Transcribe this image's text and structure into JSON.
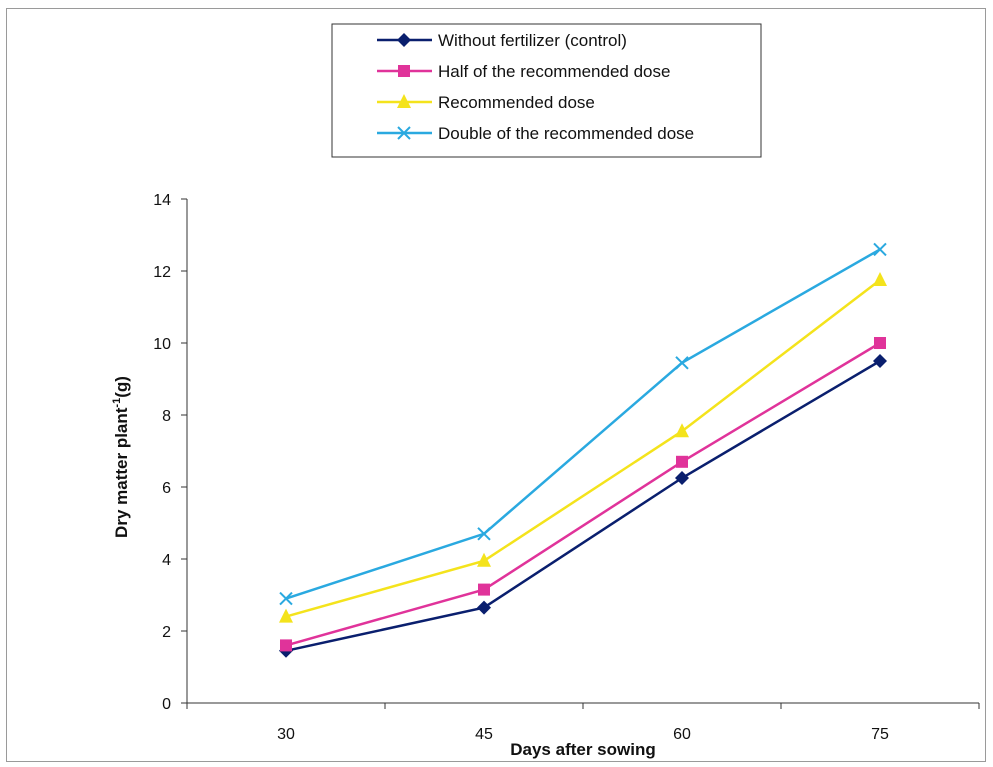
{
  "chart_data": {
    "type": "line",
    "categories": [
      "30",
      "45",
      "60",
      "75"
    ],
    "xlabel": "Days after sowing",
    "ylabel": "Dry matter plant",
    "ylabel_superscript": "-1",
    "ylabel_suffix": "(g)",
    "ylim": [
      0,
      14
    ],
    "yticks": [
      0,
      2,
      4,
      6,
      8,
      10,
      12,
      14
    ],
    "grid": false,
    "legend_position": "top-center",
    "series": [
      {
        "name": "Without fertilizer (control)",
        "color": "#0a1f6e",
        "marker": "diamond",
        "values": [
          1.45,
          2.65,
          6.25,
          9.5
        ]
      },
      {
        "name": "Half of the recommended dose",
        "color": "#e0339a",
        "marker": "square",
        "values": [
          1.6,
          3.15,
          6.7,
          10.0
        ]
      },
      {
        "name": "Recommended dose",
        "color": "#f4e31c",
        "marker": "triangle",
        "values": [
          2.4,
          3.95,
          7.55,
          11.75
        ]
      },
      {
        "name": "Double of the recommended dose",
        "color": "#2aa9e0",
        "marker": "x",
        "values": [
          2.9,
          4.7,
          9.45,
          12.6
        ]
      }
    ]
  }
}
